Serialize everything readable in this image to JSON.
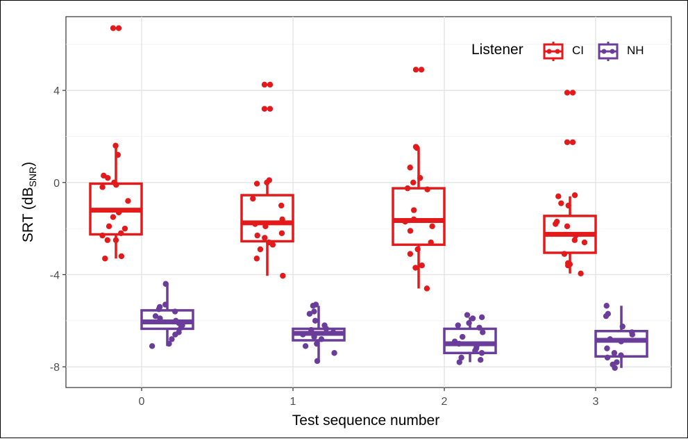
{
  "chart_data": {
    "type": "box",
    "xlabel": "Test sequence number",
    "ylabel_main": "SRT (dB",
    "ylabel_sub": "SNR",
    "ylabel_close": ")",
    "x_categories": [
      "0",
      "1",
      "2",
      "3"
    ],
    "ylim": [
      -8.9,
      7.2
    ],
    "y_ticks": [
      4,
      0,
      -4,
      -8
    ],
    "y_tick_labels": [
      "4",
      "0",
      "-4",
      "-8"
    ],
    "grid": true,
    "legend": {
      "title": "Listener",
      "placement": "top-right",
      "entries": [
        {
          "label": "CI",
          "color": "#e31a1c"
        },
        {
          "label": "NH",
          "color": "#6a3d9a"
        }
      ]
    },
    "series": [
      {
        "name": "CI",
        "color": "#e31a1c",
        "boxes": [
          {
            "x": "0",
            "q1": -2.25,
            "median": -1.2,
            "q3": -0.05,
            "whisker_low": -3.3,
            "whisker_high": 1.6,
            "points": [
              6.7,
              6.7,
              1.6,
              1.2,
              0.3,
              0.2,
              0.0,
              -0.1,
              -0.2,
              -0.8,
              -1.3,
              -1.5,
              -1.9,
              -2.0,
              -2.2,
              -2.3,
              -2.5,
              -2.5,
              -3.2,
              -3.3
            ]
          },
          {
            "x": "1",
            "q1": -2.55,
            "median": -1.75,
            "q3": -0.55,
            "whisker_low": -4.05,
            "whisker_high": 0.05,
            "points": [
              4.25,
              4.25,
              3.2,
              3.2,
              0.1,
              0.0,
              -0.05,
              -0.7,
              -1.0,
              -1.6,
              -1.8,
              -1.9,
              -2.2,
              -2.3,
              -2.4,
              -2.6,
              -2.7,
              -2.9,
              -3.3,
              -4.05
            ]
          },
          {
            "x": "2",
            "q1": -2.7,
            "median": -1.65,
            "q3": -0.25,
            "whisker_low": -4.6,
            "whisker_high": 1.5,
            "points": [
              4.9,
              4.9,
              1.55,
              1.5,
              0.65,
              0.2,
              0.0,
              -0.25,
              -0.3,
              -1.2,
              -1.6,
              -1.7,
              -1.9,
              -2.1,
              -2.6,
              -2.9,
              -3.1,
              -3.6,
              -3.7,
              -4.6
            ]
          },
          {
            "x": "3",
            "q1": -3.05,
            "median": -2.25,
            "q3": -1.45,
            "whisker_low": -3.95,
            "whisker_high": -0.6,
            "points": [
              3.9,
              3.9,
              1.75,
              1.75,
              -0.55,
              -0.6,
              -0.9,
              -1.0,
              -1.7,
              -1.8,
              -1.9,
              -2.3,
              -2.5,
              -2.6,
              -3.1,
              -3.5,
              -3.55,
              -3.6,
              -3.95
            ]
          }
        ]
      },
      {
        "name": "NH",
        "color": "#6a3d9a",
        "boxes": [
          {
            "x": "0",
            "q1": -6.35,
            "median": -6.05,
            "q3": -5.55,
            "whisker_low": -7.1,
            "whisker_high": -4.4,
            "points": [
              -4.4,
              -5.3,
              -5.4,
              -5.5,
              -5.6,
              -5.8,
              -5.9,
              -6.0,
              -6.1,
              -6.2,
              -6.3,
              -6.5,
              -6.6,
              -6.8,
              -7.0,
              -7.1
            ]
          },
          {
            "x": "1",
            "q1": -6.85,
            "median": -6.55,
            "q3": -6.35,
            "whisker_low": -7.75,
            "whisker_high": -5.35,
            "points": [
              -5.3,
              -5.35,
              -5.6,
              -5.7,
              -6.0,
              -6.2,
              -6.35,
              -6.4,
              -6.5,
              -6.6,
              -6.7,
              -6.8,
              -7.0,
              -7.1,
              -7.4,
              -7.75
            ]
          },
          {
            "x": "2",
            "q1": -7.4,
            "median": -7.0,
            "q3": -6.35,
            "whisker_low": -7.8,
            "whisker_high": -5.85,
            "points": [
              -5.75,
              -5.85,
              -5.9,
              -6.1,
              -6.2,
              -6.3,
              -6.5,
              -6.7,
              -6.9,
              -7.0,
              -7.1,
              -7.2,
              -7.3,
              -7.4,
              -7.6,
              -7.7,
              -7.8
            ]
          },
          {
            "x": "3",
            "q1": -7.55,
            "median": -6.85,
            "q3": -6.45,
            "whisker_low": -8.05,
            "whisker_high": -5.35,
            "points": [
              -5.35,
              -5.7,
              -5.8,
              -6.25,
              -6.5,
              -6.6,
              -6.8,
              -6.9,
              -7.2,
              -7.4,
              -7.5,
              -7.6,
              -7.8,
              -7.9,
              -8.05
            ]
          }
        ]
      }
    ]
  }
}
